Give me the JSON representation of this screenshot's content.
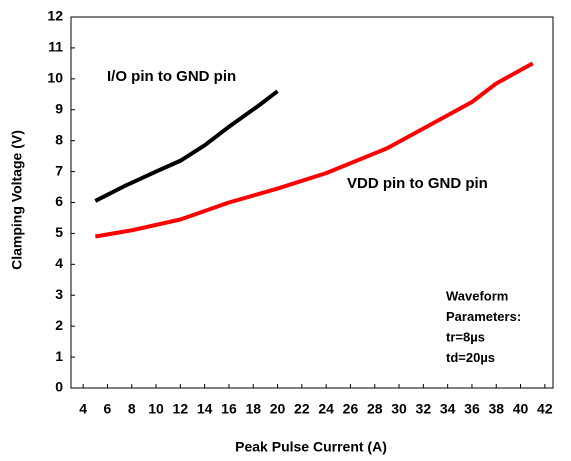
{
  "chart_data": {
    "type": "line",
    "xlabel": "Peak Pulse Current (A)",
    "ylabel": "Clamping Voltage (V)",
    "xlim": [
      3,
      43
    ],
    "xticks": [
      4,
      6,
      8,
      10,
      12,
      14,
      16,
      18,
      20,
      22,
      24,
      26,
      28,
      30,
      32,
      34,
      36,
      38,
      40,
      42
    ],
    "ylim": [
      0,
      12
    ],
    "yticks": [
      0,
      1,
      2,
      3,
      4,
      5,
      6,
      7,
      8,
      9,
      10,
      11,
      12
    ],
    "series": [
      {
        "name": "I/O pin to GND pin",
        "color": "#000000",
        "x": [
          5,
          7.5,
          10,
          12,
          14,
          16,
          18.5,
          20
        ],
        "values": [
          6.05,
          6.55,
          7.0,
          7.35,
          7.85,
          8.45,
          9.15,
          9.6
        ]
      },
      {
        "name": "VDD pin to GND pin",
        "color": "#ff0000",
        "x": [
          5,
          8,
          12,
          16,
          20,
          24,
          29,
          36,
          38,
          41
        ],
        "values": [
          4.9,
          5.1,
          5.45,
          6.0,
          6.45,
          6.95,
          7.75,
          9.25,
          9.85,
          10.5
        ]
      }
    ],
    "annotations": [
      "Waveform",
      "Parameters:",
      "tr=8µs",
      "td=20µs"
    ]
  }
}
